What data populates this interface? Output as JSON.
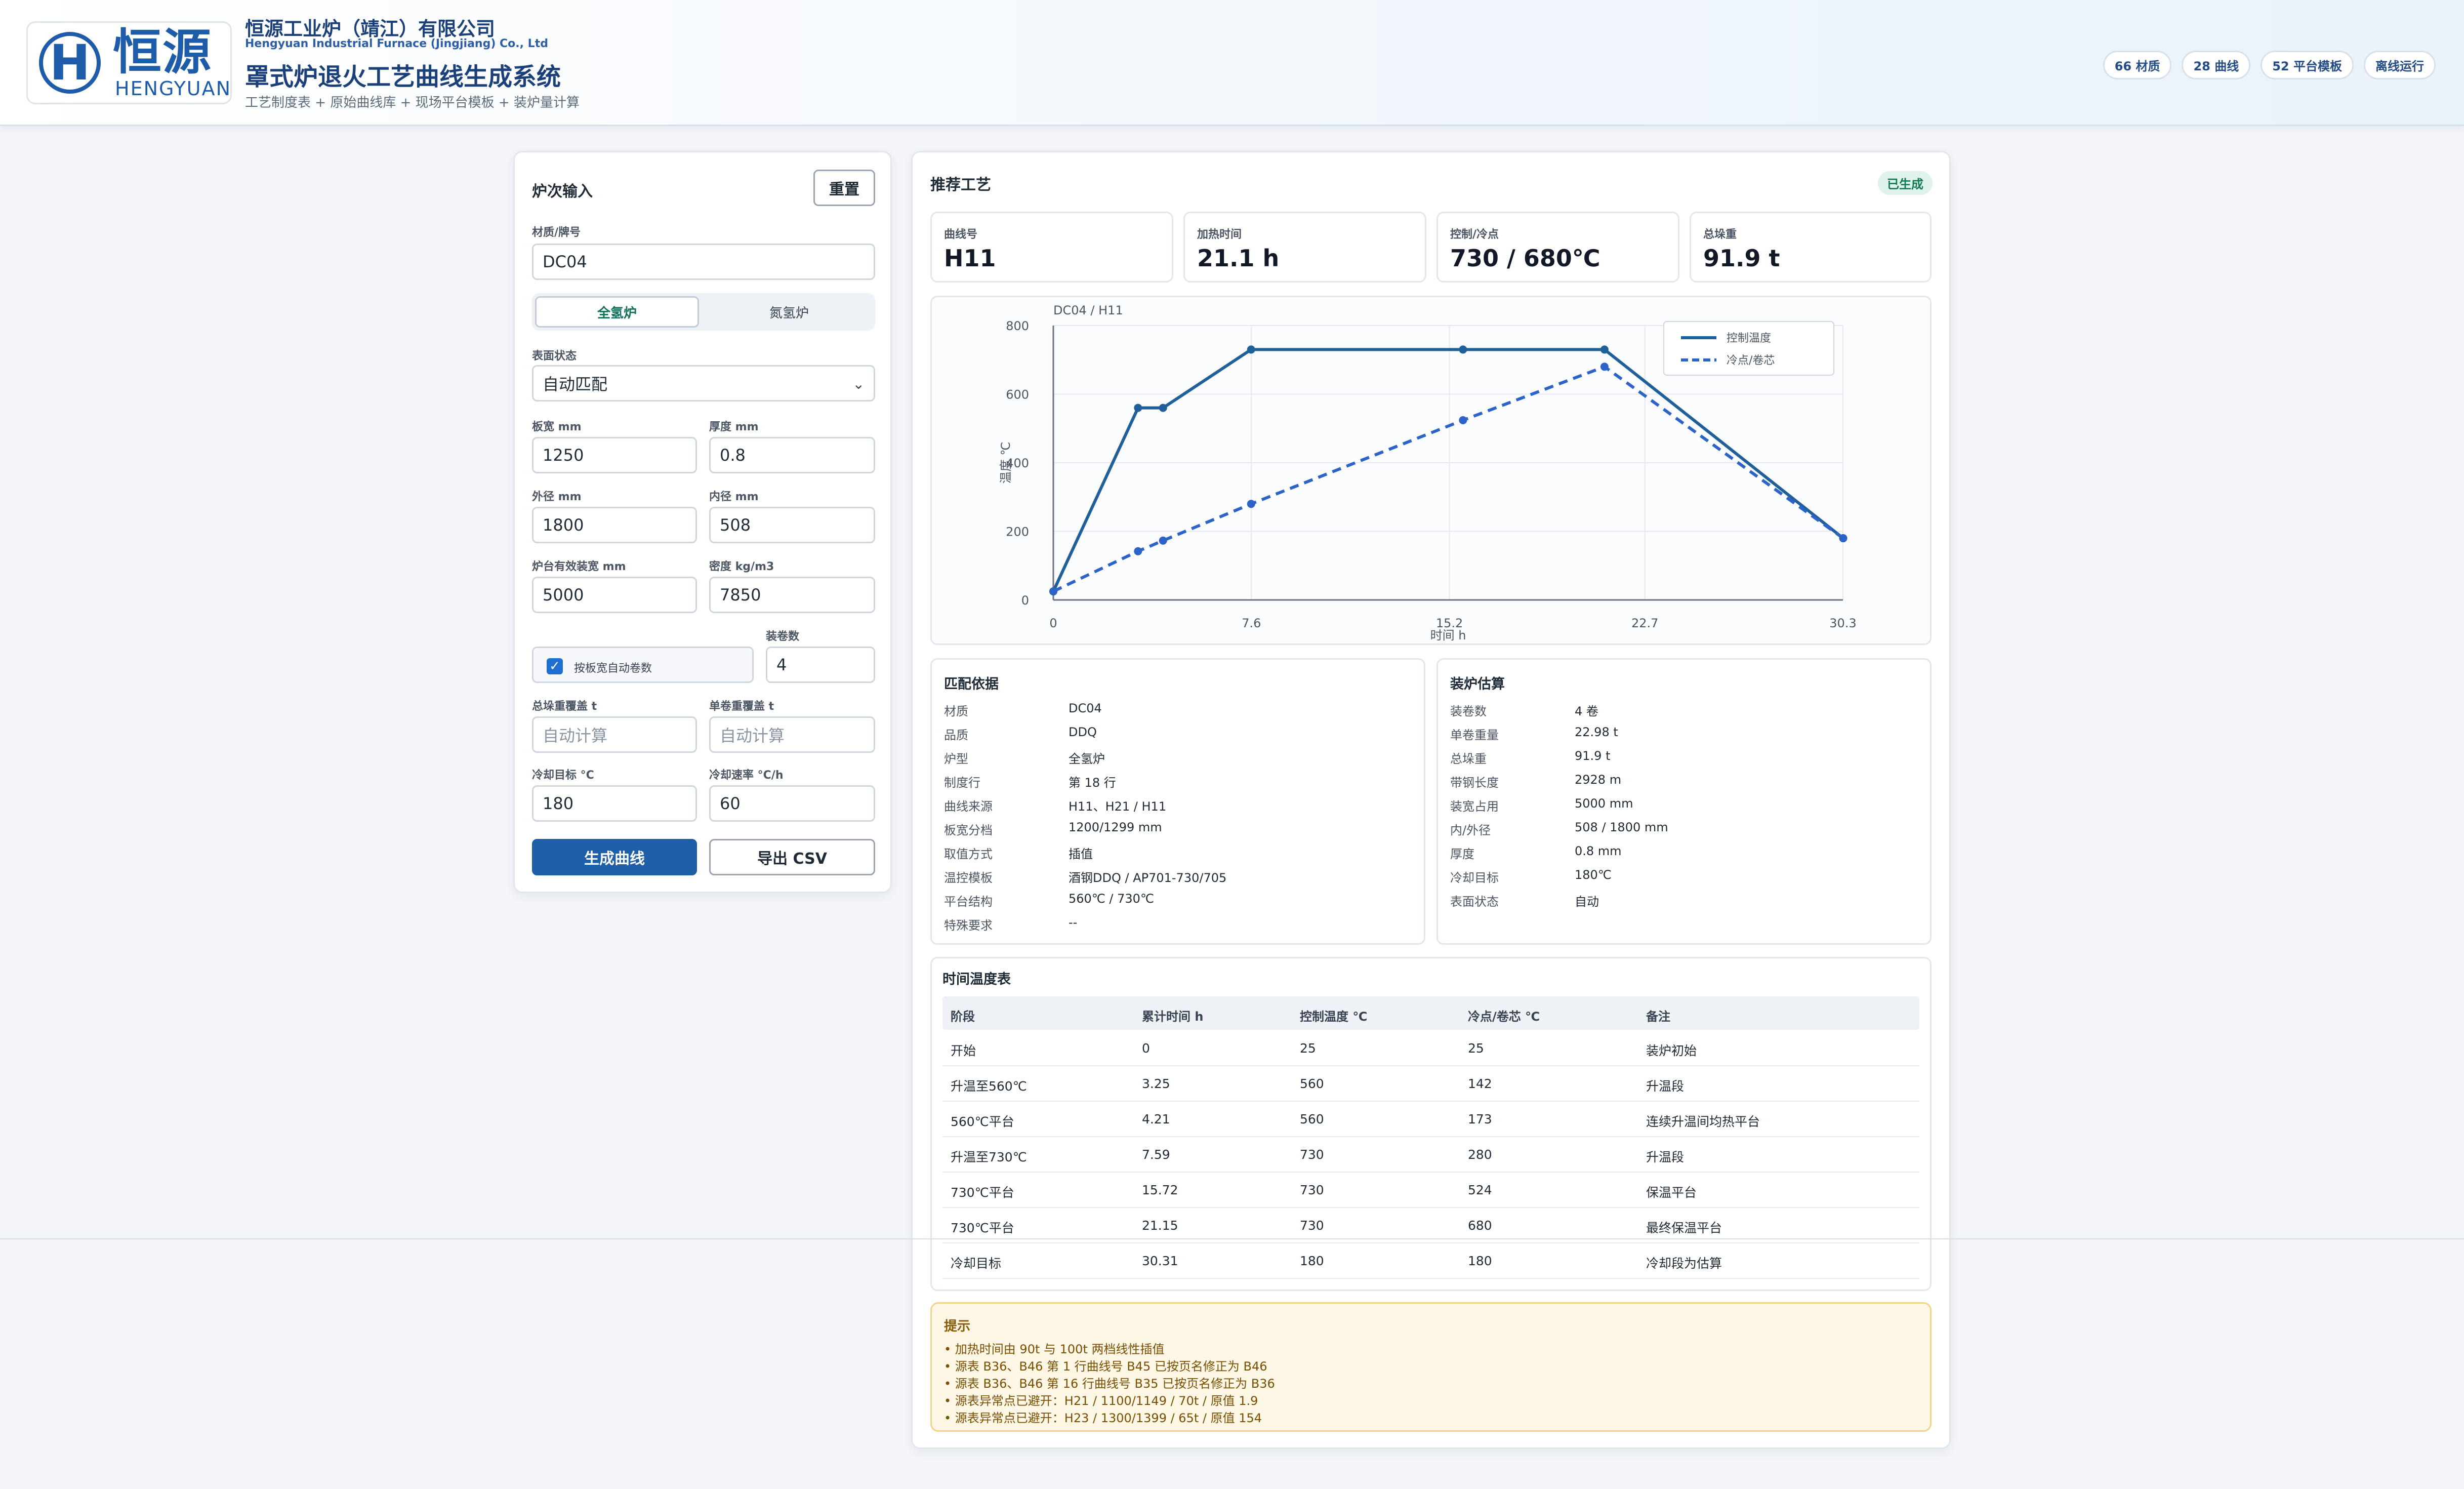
{
  "header": {
    "logo_cn": "恒源",
    "logo_en": "HENGYUAN",
    "logo_mark": "H",
    "company_cn": "恒源工业炉（靖江）有限公司",
    "company_en": "Hengyuan Industrial Furnace (Jingjiang) Co., Ltd",
    "system_title": "罩式炉退火工艺曲线生成系统",
    "breadcrumb": "工艺制度表 + 原始曲线库 + 现场平台模板 + 装炉量计算",
    "badges": [
      "66 材质",
      "28 曲线",
      "52 平台模板",
      "离线运行"
    ]
  },
  "input_panel": {
    "title": "炉次输入",
    "reset_label": "重置",
    "material_label": "材质/牌号",
    "material_value": "DC04",
    "furnace_types": [
      "全氢炉",
      "氮氢炉"
    ],
    "furnace_active": "全氢炉",
    "surface_label": "表面状态",
    "surface_value": "自动匹配",
    "width_label": "板宽 mm",
    "width_value": "1250",
    "thickness_label": "厚度 mm",
    "thickness_value": "0.8",
    "outer_label": "外径 mm",
    "outer_value": "1800",
    "inner_label": "内径 mm",
    "inner_value": "508",
    "base_width_label": "炉台有效装宽 mm",
    "base_width_value": "5000",
    "density_label": "密度 kg/m3",
    "density_value": "7850",
    "coils_label": "装卷数",
    "coils_value": "4",
    "auto_coils_label": "按板宽自动卷数",
    "auto_coils_checked": true,
    "total_weight_label": "总垛重覆盖 t",
    "total_weight_placeholder": "自动计算",
    "coil_weight_label": "单卷重覆盖 t",
    "coil_weight_placeholder": "自动计算",
    "cool_target_label": "冷却目标 °C",
    "cool_target_value": "180",
    "cool_rate_label": "冷却速率 °C/h",
    "cool_rate_value": "60",
    "generate_label": "生成曲线",
    "export_label": "导出 CSV"
  },
  "result": {
    "title": "推荐工艺",
    "status": "已生成",
    "stats": [
      {
        "label": "曲线号",
        "value": "H11"
      },
      {
        "label": "加热时间",
        "value": "21.1 h"
      },
      {
        "label": "控制/冷点",
        "value": "730 / 680℃"
      },
      {
        "label": "总垛重",
        "value": "91.9 t"
      }
    ]
  },
  "chart_data": {
    "type": "line",
    "title": "DC04 / H11",
    "xlabel": "时间 h",
    "ylabel": "温度 ℃",
    "xlim": [
      0,
      30.3
    ],
    "ylim": [
      0,
      800
    ],
    "xticks": [
      "0",
      "7.6",
      "15.2",
      "22.7",
      "30.3"
    ],
    "yticks": [
      "0",
      "200",
      "400",
      "600",
      "800"
    ],
    "grid": true,
    "legend_position": "top-right",
    "series": [
      {
        "name": "控制温度",
        "style": "solid",
        "color": "#1f5f9a",
        "x": [
          0,
          3.25,
          4.21,
          7.59,
          15.72,
          21.15,
          30.31
        ],
        "y": [
          25,
          560,
          560,
          730,
          730,
          730,
          180
        ]
      },
      {
        "name": "冷点/卷芯",
        "style": "dashed",
        "color": "#2b63c9",
        "x": [
          0,
          3.25,
          4.21,
          7.59,
          15.72,
          21.15,
          30.31
        ],
        "y": [
          25,
          142,
          173,
          280,
          524,
          680,
          180
        ]
      }
    ]
  },
  "match_basis": {
    "title": "匹配依据",
    "rows": [
      {
        "k": "材质",
        "v": "DC04"
      },
      {
        "k": "品质",
        "v": "DDQ"
      },
      {
        "k": "炉型",
        "v": "全氢炉"
      },
      {
        "k": "制度行",
        "v": "第 18 行"
      },
      {
        "k": "曲线来源",
        "v": "H11、H21 / H11"
      },
      {
        "k": "板宽分档",
        "v": "1200/1299 mm"
      },
      {
        "k": "取值方式",
        "v": "插值"
      },
      {
        "k": "温控模板",
        "v": "酒钢DDQ / AP701-730/705"
      },
      {
        "k": "平台结构",
        "v": "560℃ / 730℃"
      },
      {
        "k": "特殊要求",
        "v": "--"
      }
    ]
  },
  "load_estimate": {
    "title": "装炉估算",
    "rows": [
      {
        "k": "装卷数",
        "v": "4 卷"
      },
      {
        "k": "单卷重量",
        "v": "22.98 t"
      },
      {
        "k": "总垛重",
        "v": "91.9 t"
      },
      {
        "k": "带钢长度",
        "v": "2928 m"
      },
      {
        "k": "装宽占用",
        "v": "5000 mm"
      },
      {
        "k": "内/外径",
        "v": "508 / 1800 mm"
      },
      {
        "k": "厚度",
        "v": "0.8 mm"
      },
      {
        "k": "冷却目标",
        "v": "180℃"
      },
      {
        "k": "表面状态",
        "v": "自动"
      }
    ]
  },
  "time_table": {
    "title": "时间温度表",
    "headers": [
      "阶段",
      "累计时间 h",
      "控制温度 ℃",
      "冷点/卷芯 ℃",
      "备注"
    ],
    "rows": [
      [
        "开始",
        "0",
        "25",
        "25",
        "装炉初始"
      ],
      [
        "升温至560℃",
        "3.25",
        "560",
        "142",
        "升温段"
      ],
      [
        "560℃平台",
        "4.21",
        "560",
        "173",
        "连续升温间均热平台"
      ],
      [
        "升温至730℃",
        "7.59",
        "730",
        "280",
        "升温段"
      ],
      [
        "730℃平台",
        "15.72",
        "730",
        "524",
        "保温平台"
      ],
      [
        "730℃平台",
        "21.15",
        "730",
        "680",
        "最终保温平台"
      ],
      [
        "冷却目标",
        "30.31",
        "180",
        "180",
        "冷却段为估算"
      ]
    ]
  },
  "tips": {
    "title": "提示",
    "lines": [
      "加热时间由 90t 与 100t 两档线性插值",
      "源表 B36、B46 第 1 行曲线号 B45 已按页名修正为 B46",
      "源表 B36、B46 第 16 行曲线号 B35 已按页名修正为 B36",
      "源表异常点已避开：H21 / 1100/1149 / 70t / 原值 1.9",
      "源表异常点已避开：H23 / 1300/1399 / 65t / 原值 154"
    ]
  }
}
